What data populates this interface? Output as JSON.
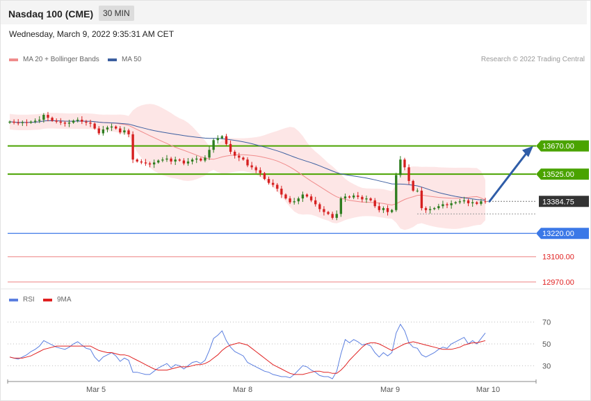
{
  "header": {
    "title": "Nasdaq 100 (CME)",
    "interval": "30 MIN",
    "timestamp": "Wednesday, March 9, 2022 9:35:31 AM CET",
    "credit": "Research © 2022 Trading Central"
  },
  "colors": {
    "ma20": "#f08c8c",
    "ma50": "#3c5fa0",
    "band_fill": "#fde3e3",
    "resistance": "#4aa300",
    "support": "#3b78e7",
    "target_low": "#f09a9a",
    "candle_up": "#2e7d1f",
    "candle_down": "#d62020",
    "rsi": "#5b7fe0",
    "rsi_ma": "#e02020",
    "arrow": "#2f5da8",
    "last_price_bg": "#333333"
  },
  "chart_data": [
    {
      "type": "candlestick",
      "legend": [
        "MA 20 + Bollinger Bands",
        "MA 50"
      ],
      "y_range": [
        12970,
        13830
      ],
      "x_ticks": [
        "Mar 5",
        "Mar 8",
        "Mar 9",
        "Mar 10"
      ],
      "close": [
        13795,
        13790,
        13788,
        13792,
        13790,
        13795,
        13800,
        13805,
        13830,
        13815,
        13800,
        13795,
        13790,
        13785,
        13790,
        13800,
        13805,
        13795,
        13790,
        13785,
        13760,
        13735,
        13755,
        13765,
        13770,
        13760,
        13740,
        13750,
        13730,
        13600,
        13590,
        13585,
        13580,
        13575,
        13585,
        13595,
        13600,
        13605,
        13590,
        13600,
        13595,
        13580,
        13590,
        13600,
        13605,
        13595,
        13610,
        13650,
        13700,
        13710,
        13720,
        13680,
        13640,
        13620,
        13610,
        13600,
        13570,
        13560,
        13545,
        13530,
        13500,
        13480,
        13470,
        13450,
        13420,
        13400,
        13380,
        13385,
        13400,
        13420,
        13410,
        13390,
        13370,
        13345,
        13330,
        13320,
        13300,
        13320,
        13400,
        13410,
        13405,
        13415,
        13408,
        13395,
        13400,
        13390,
        13360,
        13340,
        13350,
        13330,
        13340,
        13520,
        13600,
        13560,
        13490,
        13440,
        13440,
        13350,
        13340,
        13345,
        13350,
        13360,
        13370,
        13365,
        13375,
        13380,
        13385,
        13390,
        13375,
        13380,
        13372,
        13385,
        13384.75
      ],
      "levels": [
        {
          "label": "13670.00",
          "value": 13670,
          "kind": "resistance"
        },
        {
          "label": "13525.00",
          "value": 13525,
          "kind": "resistance"
        },
        {
          "label": "13384.75",
          "value": 13384.75,
          "kind": "last"
        },
        {
          "label": "13220.00",
          "value": 13220,
          "kind": "support"
        },
        {
          "label": "13100.00",
          "value": 13100,
          "kind": "target"
        },
        {
          "label": "12970.00",
          "value": 12970,
          "kind": "target"
        }
      ]
    },
    {
      "type": "line",
      "legend": [
        "RSI",
        "9MA"
      ],
      "y_range": [
        20,
        80
      ],
      "y_ticks": [
        "70",
        "50",
        "30"
      ],
      "series": [
        {
          "name": "RSI",
          "values": [
            38,
            37,
            36,
            38,
            40,
            43,
            45,
            48,
            53,
            51,
            49,
            47,
            46,
            45,
            47,
            50,
            52,
            49,
            46,
            45,
            38,
            34,
            38,
            40,
            42,
            39,
            34,
            37,
            35,
            24,
            24,
            23,
            22,
            22,
            25,
            28,
            30,
            32,
            28,
            31,
            30,
            27,
            30,
            33,
            34,
            32,
            35,
            44,
            55,
            58,
            62,
            53,
            47,
            43,
            41,
            39,
            33,
            31,
            29,
            27,
            25,
            24,
            22,
            21,
            20,
            20,
            19,
            22,
            26,
            30,
            29,
            26,
            24,
            21,
            20,
            20,
            18,
            25,
            41,
            54,
            51,
            54,
            52,
            49,
            50,
            48,
            42,
            38,
            42,
            39,
            42,
            60,
            68,
            62,
            51,
            47,
            46,
            40,
            38,
            40,
            42,
            45,
            47,
            46,
            50,
            52,
            54,
            56,
            50,
            53,
            50,
            55,
            60
          ]
        },
        {
          "name": "9MA",
          "values": [
            38,
            37,
            37,
            37,
            38,
            39,
            41,
            43,
            45,
            46,
            47,
            48,
            48,
            48,
            48,
            48,
            48,
            48,
            48,
            48,
            46,
            44,
            43,
            42,
            42,
            41,
            40,
            40,
            39,
            37,
            35,
            33,
            31,
            29,
            27,
            26,
            26,
            26,
            27,
            28,
            29,
            29,
            29,
            30,
            31,
            31,
            32,
            34,
            37,
            40,
            44,
            47,
            49,
            50,
            51,
            50,
            49,
            46,
            43,
            40,
            37,
            34,
            31,
            29,
            27,
            25,
            23,
            22,
            22,
            22,
            23,
            24,
            25,
            25,
            24,
            24,
            23,
            23,
            26,
            30,
            35,
            39,
            43,
            47,
            50,
            51,
            51,
            50,
            48,
            46,
            44,
            46,
            48,
            50,
            51,
            52,
            51,
            50,
            49,
            48,
            47,
            46,
            45,
            45,
            45,
            46,
            47,
            49,
            50,
            51,
            51,
            52,
            53
          ]
        }
      ]
    }
  ]
}
